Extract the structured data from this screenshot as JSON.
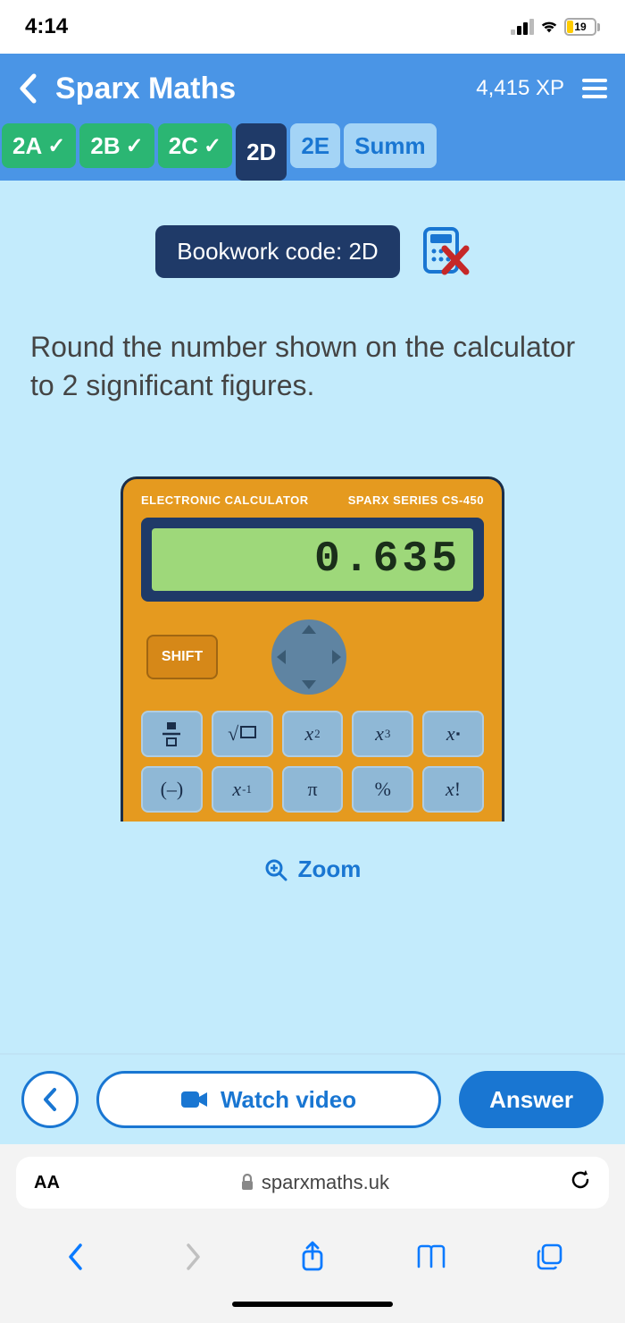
{
  "status": {
    "time": "4:14",
    "battery_pct": "19",
    "battery_fill_color": "#ffcc00"
  },
  "colors": {
    "header_bg": "#4a95e6",
    "content_bg": "#c3ebfc",
    "tab_done_bg": "#2bb673",
    "tab_current_bg": "#1f3a68",
    "tab_pending_bg": "#a4d4f6",
    "bookwork_badge_bg": "#1f3a68",
    "accent_blue": "#1976d2",
    "answer_btn_bg": "#1976d2",
    "calc_body": "#e59a1f",
    "calc_screen_frame": "#1f3a68",
    "calc_screen_bg": "#9ed87a",
    "calc_screen_text": "#1a2e1a",
    "shift_btn_bg": "#d68818",
    "dpad_bg": "#5f84a2",
    "dpad_tri": "#3a5a73",
    "calc_key_bg": "#8fb8d6",
    "nocalc_x": "#c62828",
    "nocalc_icon": "#1976d2"
  },
  "header": {
    "title": "Sparx Maths",
    "xp": "4,415 XP"
  },
  "tabs": [
    {
      "label": "2A",
      "state": "done"
    },
    {
      "label": "2B",
      "state": "done"
    },
    {
      "label": "2C",
      "state": "done"
    },
    {
      "label": "2D",
      "state": "current"
    },
    {
      "label": "2E",
      "state": "pending"
    },
    {
      "label": "Summ",
      "state": "pending"
    }
  ],
  "bookwork": {
    "label": "Bookwork code: 2D"
  },
  "question": "Round the number shown on the calculator to 2 significant figures.",
  "calculator": {
    "label_left": "ELECTRONIC CALCULATOR",
    "label_right": "SPARX SERIES CS-450",
    "display_value": "0.635",
    "shift_label": "SHIFT",
    "row1": [
      "frac",
      "sqrt",
      "x2",
      "x3",
      "xn"
    ],
    "row2": [
      "neg",
      "xinv",
      "pi",
      "pct",
      "fact"
    ],
    "key_labels": {
      "frac": "▬/▭",
      "sqrt": "√▭",
      "x2": "x²",
      "x3": "x³",
      "xn": "xⁿ",
      "neg": "(–)",
      "xinv": "x⁻¹",
      "pi": "π",
      "pct": "%",
      "fact": "x!"
    }
  },
  "zoom_label": "Zoom",
  "actions": {
    "watch_label": "Watch video",
    "answer_label": "Answer"
  },
  "url_bar": {
    "domain": "sparxmaths.uk",
    "aa": "AA"
  }
}
